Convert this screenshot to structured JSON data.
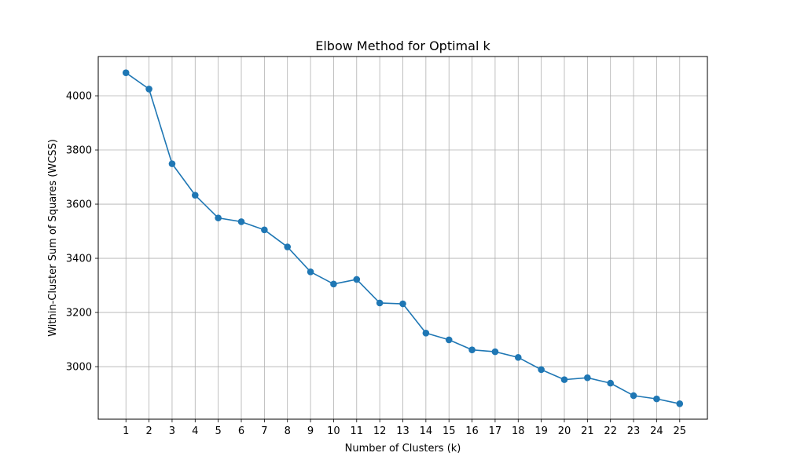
{
  "chart_data": {
    "type": "line",
    "title": "Elbow Method for Optimal k",
    "xlabel": "Number of Clusters (k)",
    "ylabel": "Within-Cluster Sum of Squares (WCSS)",
    "x": [
      1,
      2,
      3,
      4,
      5,
      6,
      7,
      8,
      9,
      10,
      11,
      12,
      13,
      14,
      15,
      16,
      17,
      18,
      19,
      20,
      21,
      22,
      23,
      24,
      25
    ],
    "series": [
      {
        "values": [
          4085,
          4025,
          3749,
          3633,
          3549,
          3535,
          3505,
          3442,
          3350,
          3305,
          3322,
          3235,
          3232,
          3124,
          3099,
          3062,
          3055,
          3034,
          2989,
          2952,
          2959,
          2939,
          2893,
          2881,
          2863
        ],
        "color": "#1f77b4",
        "marker": "circle"
      }
    ],
    "xlim": [
      -0.2,
      26.2
    ],
    "ylim": [
      2806,
      4145
    ],
    "xticks": [
      1,
      2,
      3,
      4,
      5,
      6,
      7,
      8,
      9,
      10,
      11,
      12,
      13,
      14,
      15,
      16,
      17,
      18,
      19,
      20,
      21,
      22,
      23,
      24,
      25
    ],
    "yticks": [
      3000,
      3200,
      3400,
      3600,
      3800,
      4000
    ],
    "grid": true,
    "legend": "none"
  }
}
